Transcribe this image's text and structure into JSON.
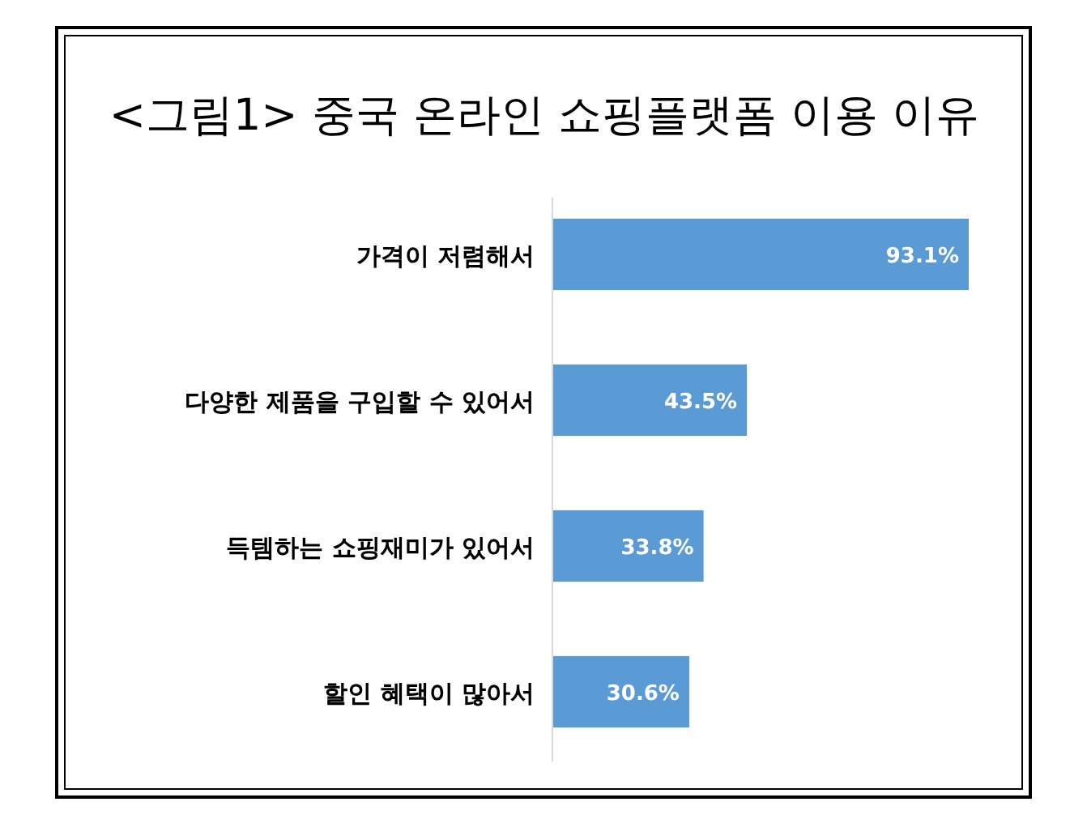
{
  "chart_data": {
    "type": "bar",
    "orientation": "horizontal",
    "title": "<그림1> 중국 온라인 쇼핑플랫폼 이용 이유",
    "categories": [
      "가격이 저렴해서",
      "다양한 제품을 구입할 수 있어서",
      "득템하는 쇼핑재미가 있어서",
      "할인 혜택이 많아서"
    ],
    "values": [
      93.1,
      43.5,
      33.8,
      30.6
    ],
    "value_labels": [
      "93.1%",
      "43.5%",
      "33.8%",
      "30.6%"
    ],
    "color": "#5b9bd5"
  }
}
